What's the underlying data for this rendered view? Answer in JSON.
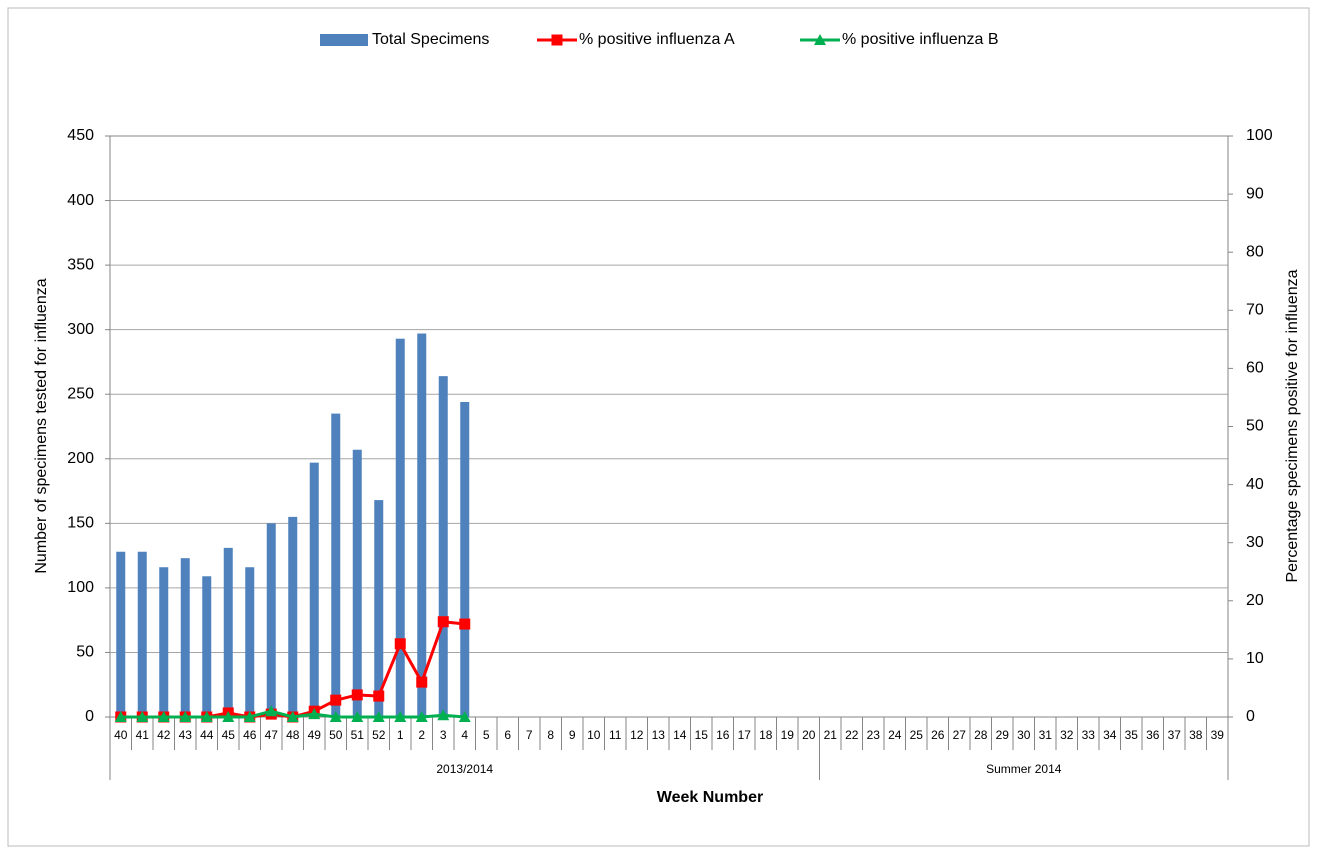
{
  "chart_data": {
    "type": "bar-line",
    "x_label": "Week Number",
    "y_label": "Number of specimens tested for influenza",
    "y2_label": "Percentage specimens positive for influenza",
    "groups": [
      {
        "label": "2013/2014",
        "categories": [
          "40",
          "41",
          "42",
          "43",
          "44",
          "45",
          "46",
          "47",
          "48",
          "49",
          "50",
          "51",
          "52",
          "1",
          "2",
          "3",
          "4",
          "5",
          "6",
          "7",
          "8",
          "9",
          "10",
          "11",
          "12",
          "13",
          "14",
          "15",
          "16",
          "17",
          "18",
          "19",
          "20"
        ]
      },
      {
        "label": "Summer 2014",
        "categories": [
          "21",
          "22",
          "23",
          "24",
          "25",
          "26",
          "27",
          "28",
          "29",
          "30",
          "31",
          "32",
          "33",
          "34",
          "35",
          "36",
          "37",
          "38",
          "39"
        ]
      }
    ],
    "series": [
      {
        "name": "Total Specimens",
        "type": "bar",
        "color": "#4f81bd",
        "values": [
          128,
          128,
          116,
          123,
          109,
          131,
          116,
          150,
          155,
          197,
          235,
          207,
          168,
          293,
          297,
          264,
          244,
          null,
          null,
          null,
          null,
          null,
          null,
          null,
          null,
          null,
          null,
          null,
          null,
          null,
          null,
          null,
          null,
          null,
          null,
          null,
          null,
          null,
          null,
          null,
          null,
          null,
          null,
          null,
          null,
          null,
          null,
          null,
          null,
          null,
          null,
          null
        ]
      },
      {
        "name": "% positive influenza A",
        "type": "line",
        "axis": "y2",
        "color": "#ff0000",
        "marker": "square",
        "values": [
          0,
          0,
          0,
          0,
          0,
          0.7,
          0,
          0.5,
          0,
          1.0,
          2.9,
          3.8,
          3.6,
          12.6,
          6.0,
          16.4,
          16.0,
          null,
          null,
          null,
          null,
          null,
          null,
          null,
          null,
          null,
          null,
          null,
          null,
          null,
          null,
          null,
          null,
          null,
          null,
          null,
          null,
          null,
          null,
          null,
          null,
          null,
          null,
          null,
          null,
          null,
          null,
          null,
          null,
          null,
          null,
          null
        ]
      },
      {
        "name": "% positive influenza B",
        "type": "line",
        "axis": "y2",
        "color": "#00b050",
        "marker": "triangle",
        "values": [
          0,
          0,
          0,
          0,
          0,
          0,
          0,
          1.0,
          0,
          0.5,
          0,
          0,
          0,
          0,
          0,
          0.3,
          0,
          null,
          null,
          null,
          null,
          null,
          null,
          null,
          null,
          null,
          null,
          null,
          null,
          null,
          null,
          null,
          null,
          null,
          null,
          null,
          null,
          null,
          null,
          null,
          null,
          null,
          null,
          null,
          null,
          null,
          null,
          null,
          null,
          null,
          null,
          null
        ]
      }
    ],
    "ylim": [
      0,
      450
    ],
    "yticks": [
      0,
      50,
      100,
      150,
      200,
      250,
      300,
      350,
      400,
      450
    ],
    "y2lim": [
      0,
      100
    ],
    "y2ticks": [
      0,
      10,
      20,
      30,
      40,
      50,
      60,
      70,
      80,
      90,
      100
    ],
    "grid": true,
    "legend": "top"
  }
}
